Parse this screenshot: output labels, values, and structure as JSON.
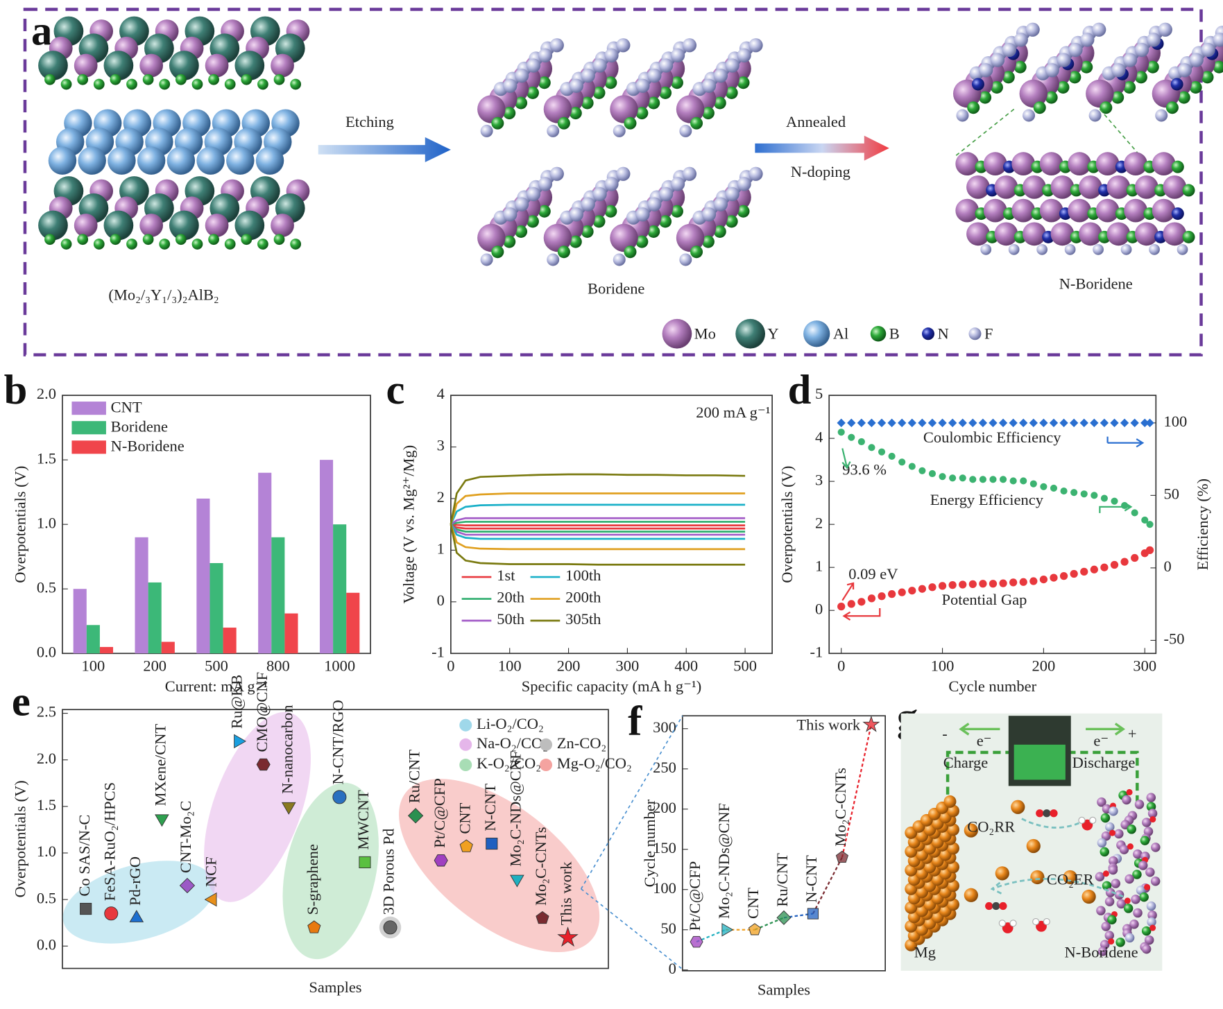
{
  "panel_labels": [
    "a",
    "b",
    "c",
    "d",
    "e",
    "f",
    "g"
  ],
  "scheme": {
    "arrow1": "Etching",
    "arrow2_top": "Annealed",
    "arrow2_bottom": "N-doping",
    "structures": [
      "(Mo₂/₃Y₁/₃)₂AlB₂",
      "Boridene",
      "N-Boridene"
    ],
    "legend": [
      "Mo",
      "Y",
      "Al",
      "B",
      "N",
      "F"
    ]
  },
  "chart_data": [
    {
      "type": "bar",
      "xlabel": "Current: mA g⁻¹",
      "ylabel": "Overpotentials (V)",
      "categories": [
        "100",
        "200",
        "500",
        "800",
        "1000"
      ],
      "series": [
        {
          "name": "CNT",
          "color": "#b483d6",
          "values": [
            0.5,
            0.9,
            1.2,
            1.4,
            1.5
          ]
        },
        {
          "name": "Boridene",
          "color": "#3cb878",
          "values": [
            0.22,
            0.55,
            0.7,
            0.9,
            1.0
          ]
        },
        {
          "name": "N-Boridene",
          "color": "#f0454b",
          "values": [
            0.05,
            0.09,
            0.2,
            0.31,
            0.47
          ]
        }
      ],
      "ylim": [
        0,
        2
      ],
      "yticks": [
        {
          "value": 0,
          "label": "0.0"
        },
        0.5,
        {
          "value": 1,
          "label": "1.0"
        },
        1.5,
        {
          "value": 2,
          "label": "2.0"
        }
      ],
      "legend": "upper left"
    },
    {
      "type": "line",
      "xlabel": "Specific capacity (mA h g⁻¹)",
      "ylabel": "Voltage (V vs. Mg²⁺/Mg)",
      "annotation": "200 mA g⁻¹",
      "x": [
        0,
        10,
        25,
        50,
        100,
        150,
        200,
        250,
        300,
        350,
        400,
        450,
        500
      ],
      "series": [
        {
          "name": "1st",
          "color": "#e8383d",
          "values": [
            1.5,
            1.49,
            1.48,
            1.48,
            1.48,
            1.48,
            1.48,
            1.48,
            1.48,
            1.48,
            1.48,
            1.48,
            1.48
          ],
          "discharge": [
            1.5,
            1.44,
            1.42,
            1.42,
            1.42,
            1.42,
            1.42,
            1.42,
            1.42,
            1.42,
            1.42,
            1.42,
            1.42
          ]
        },
        {
          "name": "20th",
          "color": "#2fae6e",
          "values": [
            1.5,
            1.53,
            1.55,
            1.55,
            1.55,
            1.55,
            1.55,
            1.55,
            1.55,
            1.55,
            1.55,
            1.55,
            1.55
          ],
          "discharge": [
            1.5,
            1.4,
            1.36,
            1.36,
            1.36,
            1.36,
            1.36,
            1.36,
            1.36,
            1.36,
            1.36,
            1.36,
            1.36
          ]
        },
        {
          "name": "50th",
          "color": "#a25bc7",
          "values": [
            1.5,
            1.58,
            1.62,
            1.62,
            1.62,
            1.62,
            1.62,
            1.62,
            1.62,
            1.62,
            1.62,
            1.62,
            1.62
          ],
          "discharge": [
            1.5,
            1.36,
            1.3,
            1.3,
            1.3,
            1.3,
            1.3,
            1.3,
            1.3,
            1.3,
            1.3,
            1.3,
            1.3
          ]
        },
        {
          "name": "100th",
          "color": "#1ab0c8",
          "values": [
            1.5,
            1.75,
            1.84,
            1.87,
            1.88,
            1.88,
            1.88,
            1.88,
            1.88,
            1.88,
            1.88,
            1.88,
            1.88
          ],
          "discharge": [
            1.5,
            1.3,
            1.24,
            1.22,
            1.22,
            1.22,
            1.22,
            1.22,
            1.22,
            1.22,
            1.22,
            1.22,
            1.22
          ]
        },
        {
          "name": "200th",
          "color": "#e0a020",
          "values": [
            1.5,
            1.9,
            2.05,
            2.08,
            2.1,
            2.1,
            2.1,
            2.1,
            2.1,
            2.1,
            2.1,
            2.1,
            2.1
          ],
          "discharge": [
            1.5,
            1.15,
            1.06,
            1.03,
            1.02,
            1.02,
            1.02,
            1.02,
            1.02,
            1.02,
            1.02,
            1.02,
            1.02
          ]
        },
        {
          "name": "305th",
          "color": "#7a7a10",
          "values": [
            1.5,
            2.1,
            2.35,
            2.42,
            2.44,
            2.46,
            2.47,
            2.47,
            2.46,
            2.46,
            2.45,
            2.45,
            2.44
          ],
          "discharge": [
            1.5,
            0.95,
            0.8,
            0.75,
            0.73,
            0.73,
            0.73,
            0.72,
            0.72,
            0.72,
            0.72,
            0.72,
            0.72
          ]
        }
      ],
      "xlim": [
        0,
        546
      ],
      "xticks": [
        0,
        100,
        200,
        300,
        400,
        500
      ],
      "ylim": [
        -1,
        4
      ],
      "yticks": [
        -1,
        0,
        1,
        2,
        3,
        4
      ],
      "legend": "lower left"
    },
    {
      "type": "scatter",
      "xlabel": "Cycle number",
      "ylabel": "Overpotentials (V)",
      "y2label": "Efficiency (%)",
      "annotations": [
        "93.6 %",
        "0.09 eV"
      ],
      "x": [
        0,
        10,
        20,
        30,
        40,
        50,
        60,
        70,
        80,
        90,
        100,
        110,
        120,
        130,
        140,
        150,
        160,
        170,
        180,
        190,
        200,
        210,
        220,
        230,
        240,
        250,
        260,
        270,
        280,
        290,
        300,
        305
      ],
      "series": [
        {
          "name": "Coulombic Efficiency",
          "color": "#2a6fd0",
          "axis": "y2",
          "values": [
            100,
            100,
            100,
            100,
            100,
            100,
            100,
            100,
            100,
            100,
            100,
            100,
            100,
            100,
            100,
            100,
            100,
            100,
            100,
            100,
            100,
            100,
            100,
            100,
            100,
            100,
            100,
            100,
            100,
            100,
            100,
            100
          ]
        },
        {
          "name": "Energy Efficiency",
          "color": "#3cb371",
          "axis": "y2",
          "values": [
            93.6,
            90,
            87,
            83,
            80,
            77,
            73,
            70,
            67,
            65,
            63,
            62,
            62,
            61,
            61,
            61,
            61,
            60,
            60,
            58,
            56,
            55,
            53,
            52,
            51,
            50,
            48,
            46,
            43,
            38,
            33,
            30
          ]
        },
        {
          "name": "Potential Gap",
          "color": "#e8383d",
          "values": [
            0.09,
            0.15,
            0.2,
            0.28,
            0.33,
            0.38,
            0.42,
            0.46,
            0.5,
            0.54,
            0.57,
            0.59,
            0.6,
            0.61,
            0.62,
            0.62,
            0.63,
            0.65,
            0.66,
            0.68,
            0.72,
            0.76,
            0.8,
            0.85,
            0.9,
            0.95,
            1.0,
            1.06,
            1.13,
            1.22,
            1.33,
            1.4
          ]
        }
      ],
      "xlim": [
        -12,
        311
      ],
      "xticks": [
        0,
        100,
        200,
        300
      ],
      "ylim": [
        -1,
        5
      ],
      "yticks": [
        -1,
        0,
        1,
        2,
        3,
        4,
        5
      ],
      "y2lim": [
        -59,
        119
      ],
      "y2ticks": [
        -50,
        0,
        50,
        100
      ]
    },
    {
      "type": "dot",
      "xlabel": "Samples",
      "ylabel": "Overpotentials (V)",
      "categories": [
        "Co SAS/N-C",
        "FeSA-RuO₂/HPCS",
        "Pd-rGO",
        "MXene/CNT",
        "CNT-Mo₂C",
        "NCF",
        "Ru@KB",
        "CMO@CNF",
        "N-nanocarbon",
        "S-graphene",
        "N-CNT/RGO",
        "MWCNT",
        "3D Porous Pd",
        "Ru/CNT",
        "Pt/C@CFP",
        "CNT",
        "N-CNT",
        "Mo₂C-NDs@CNF",
        "Mo₂C-CNTs",
        "This work"
      ],
      "values": [
        0.4,
        0.35,
        0.3,
        1.37,
        0.65,
        0.5,
        2.2,
        1.95,
        1.5,
        0.2,
        1.6,
        0.9,
        0.2,
        1.4,
        0.92,
        1.07,
        1.1,
        0.72,
        0.3,
        0.09
      ],
      "markers": [
        "square",
        "circle",
        "triangle",
        "triangle-down",
        "diamond",
        "triangle-left",
        "triangle-right",
        "hexagon",
        "triangle-down",
        "pentagon",
        "circle",
        "square",
        "circle",
        "diamond",
        "hexagon",
        "pentagon",
        "square",
        "triangle-down",
        "pentagon",
        "star"
      ],
      "colors": [
        "#555555",
        "#e8383d",
        "#1c6fd0",
        "#2fa050",
        "#9b59c6",
        "#e8901a",
        "#1a9fe0",
        "#7a2a30",
        "#8a7a20",
        "#e87a10",
        "#2a70c0",
        "#5ac040",
        "#666666",
        "#2a9050",
        "#a040c0",
        "#f0a020",
        "#2060c0",
        "#20b0c0",
        "#7a2a30",
        "#e8202a"
      ],
      "label_colors": [
        "#222222",
        "#222222",
        "#222222",
        "#222222",
        "#222222",
        "#222222",
        "#222222",
        "#222222",
        "#222222",
        "#222222",
        "#222222",
        "#222222",
        "#222222",
        "#222222",
        "#222222",
        "#222222",
        "#222222",
        "#222222",
        "#222222",
        "#e8202a"
      ],
      "groups": [
        {
          "name": "Li-O₂/CO₂",
          "color": "#9fd8ea"
        },
        {
          "name": "Na-O₂/CO₂",
          "color": "#e5b6ea"
        },
        {
          "name": "Zn-CO₂",
          "color": "#bdbdbd"
        },
        {
          "name": "K-O₂/CO₂",
          "color": "#a8ddb5"
        },
        {
          "name": "Mg-O₂/CO₂",
          "color": "#f4a3a0"
        }
      ],
      "ylim": [
        -0.24,
        2.54
      ],
      "yticks": [
        {
          "value": 0,
          "label": "0.0"
        },
        0.5,
        {
          "value": 1,
          "label": "1.0"
        },
        1.5,
        {
          "value": 2,
          "label": "2.0"
        },
        2.5
      ]
    },
    {
      "type": "line",
      "xlabel": "Samples",
      "ylabel": "Cycle number",
      "categories": [
        "Pt/C@CFP",
        "Mo₂C-NDs@CNF",
        "CNT",
        "Ru/CNT",
        "N-CNT",
        "Mo₂C-CNTs",
        "This work"
      ],
      "values": [
        35,
        50,
        50,
        65,
        70,
        140,
        305
      ],
      "markers": [
        "hexagon",
        "triangle-right",
        "pentagon",
        "diamond",
        "square",
        "pentagon",
        "star"
      ],
      "colors": [
        "#a040c0",
        "#20b0c0",
        "#f0a020",
        "#2a9050",
        "#2060c0",
        "#7a2a30",
        "#e8202a"
      ],
      "label_colors": [
        "#222222",
        "#222222",
        "#222222",
        "#222222",
        "#222222",
        "#222222",
        "#e8202a"
      ],
      "ylim": [
        -1,
        316
      ],
      "yticks": [
        0,
        50,
        100,
        150,
        200,
        250,
        300
      ]
    }
  ],
  "device": {
    "minus": "-",
    "plus": "+",
    "electron_left": "e⁻",
    "electron_right": "e⁻",
    "charge": "Charge",
    "discharge": "Discharge",
    "reduction": "CO₂RR",
    "evolution": "CO₂ER",
    "anode": "Mg",
    "cathode": "N-Boridene"
  }
}
